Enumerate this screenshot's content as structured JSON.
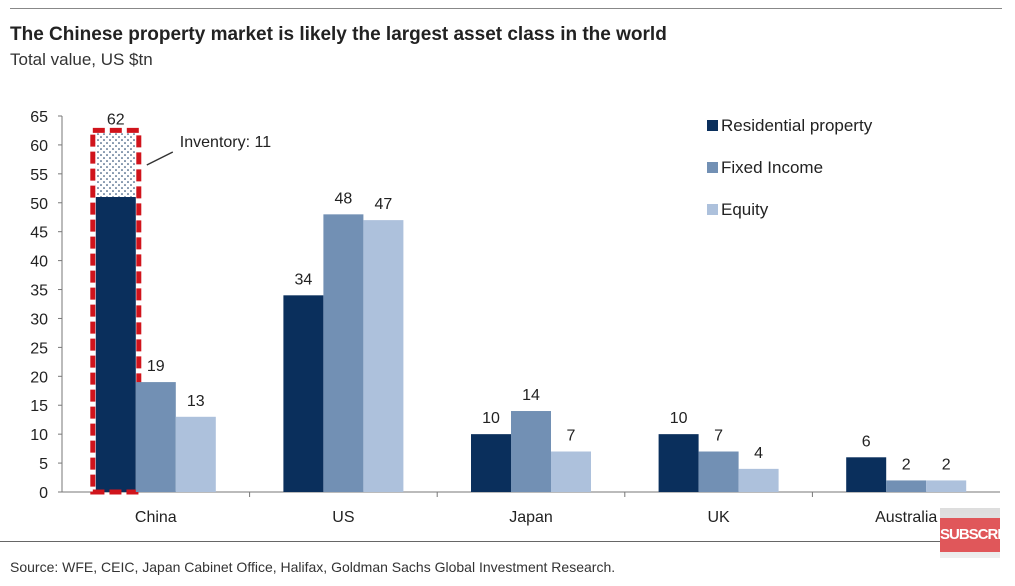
{
  "chart_data": {
    "type": "bar",
    "title": "The Chinese property market is likely the largest asset class in the world",
    "subtitle": "Total value, US $tn",
    "categories": [
      "China",
      "US",
      "Japan",
      "UK",
      "Australia"
    ],
    "series": [
      {
        "name": "Residential property",
        "color": "#0a2f5c",
        "values": [
          62,
          34,
          10,
          10,
          6
        ],
        "labels": [
          "62",
          "34",
          "10",
          "10",
          "6"
        ]
      },
      {
        "name": "Fixed Income",
        "color": "#7290b4",
        "values": [
          19,
          48,
          14,
          7,
          2
        ],
        "labels": [
          "19",
          "48",
          "14",
          "7",
          "2"
        ]
      },
      {
        "name": "Equity",
        "color": "#adc1dc",
        "values": [
          13,
          47,
          7,
          4,
          2
        ],
        "labels": [
          "13",
          "47",
          "7",
          "4",
          "2"
        ]
      }
    ],
    "annotation": {
      "text": "Inventory: 11",
      "category": "China",
      "series": "Residential property",
      "value": 11,
      "highlight_color": "#d0141c"
    },
    "ylim": [
      0,
      65
    ],
    "yticks": [
      0,
      5,
      10,
      15,
      20,
      25,
      30,
      35,
      40,
      45,
      50,
      55,
      60,
      65
    ],
    "grid": false,
    "legend_position": "top-right",
    "xlabel": "",
    "ylabel": ""
  },
  "source": "Source: WFE, CEIC, Japan Cabinet Office, Halifax, Goldman Sachs Global Investment Research.",
  "watermark": "SUBSCRIBE"
}
